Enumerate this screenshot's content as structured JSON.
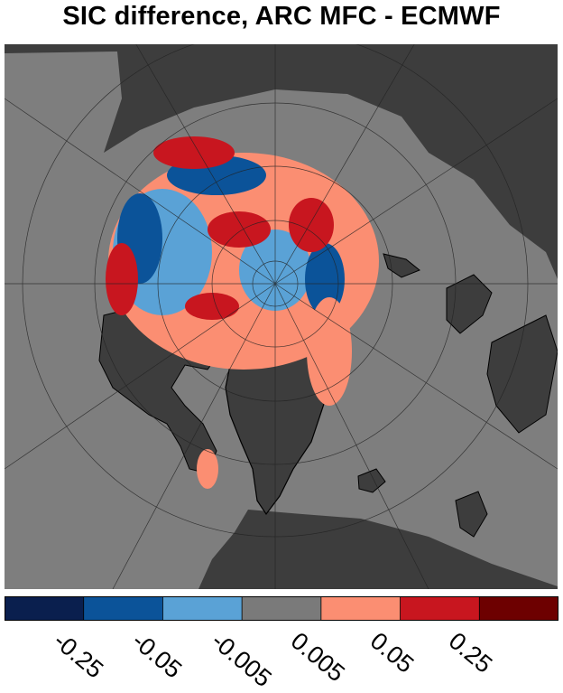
{
  "title": "SIC difference, ARC MFC - ECMWF",
  "colorbar": {
    "ticks": [
      "-0.25",
      "-0.05",
      "-0.005",
      "0.005",
      "0.05",
      "0.25"
    ],
    "colors": [
      "#0a1f4e",
      "#0b5399",
      "#5aa2d6",
      "#7a7a7a",
      "#fb8e72",
      "#c8161f",
      "#6d0000"
    ]
  },
  "map": {
    "land_color": "#3d3d3d",
    "ocean_color": "#7e7e7e",
    "projection": "north-polar-stereographic"
  }
}
